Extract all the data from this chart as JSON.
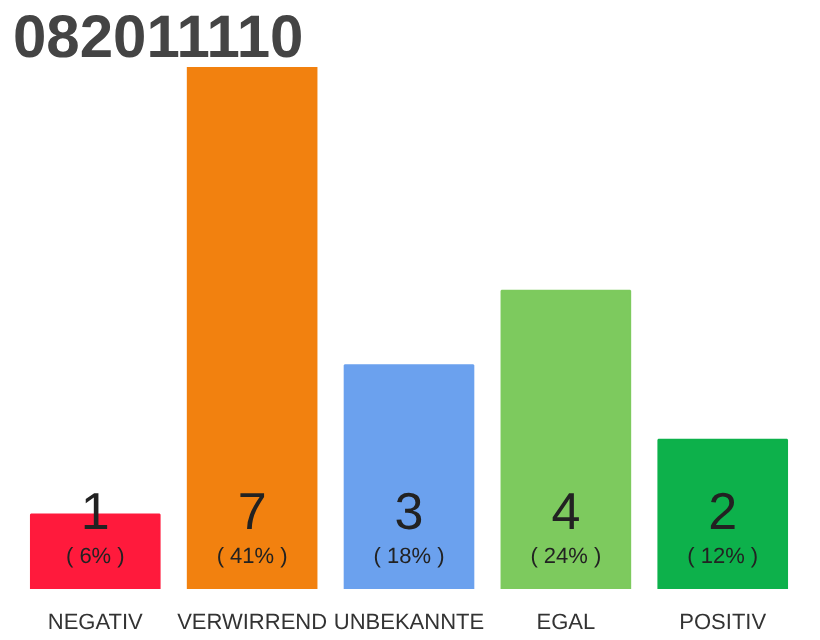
{
  "chart_data": {
    "type": "bar",
    "title": "082011110",
    "categories": [
      "NEGATIV",
      "VERWIRREND",
      "UNBEKANNTE",
      "EGAL",
      "POSITIV"
    ],
    "values": [
      1,
      7,
      3,
      4,
      2
    ],
    "colors": [
      "#ff1a3c",
      "#f2810f",
      "#6ba1ee",
      "#7dca5e",
      "#0db14b"
    ],
    "ylim": [
      0,
      7
    ],
    "data_labels": true,
    "tick_labels": "x",
    "grid": false,
    "annotations": [
      "( 6% )",
      "( 41% )",
      "( 18% )",
      "( 24% )",
      "( 12% )"
    ]
  }
}
